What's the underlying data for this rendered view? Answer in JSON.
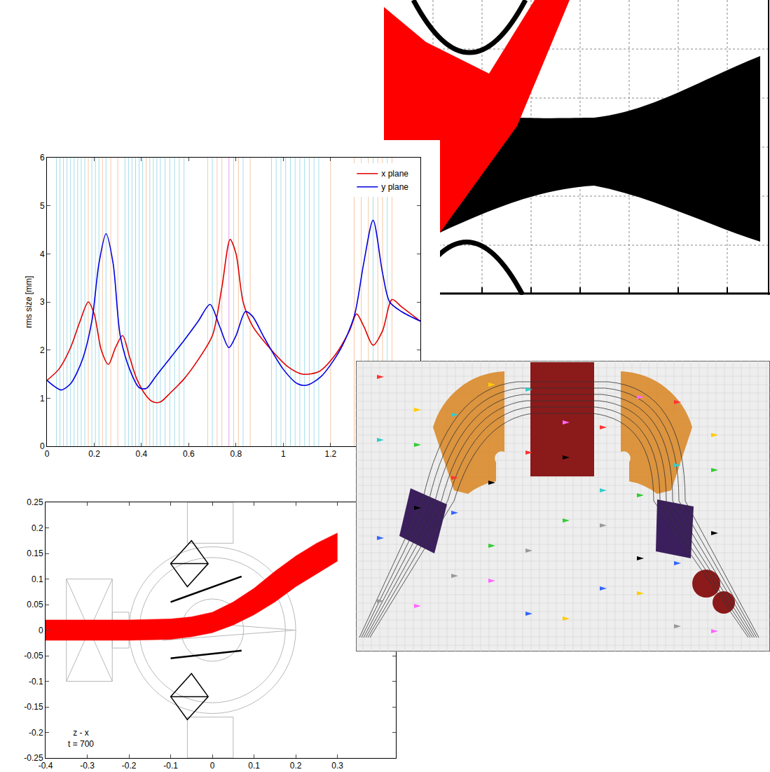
{
  "chart_data": [
    {
      "type": "line",
      "y_label": "rms size [mm]",
      "xlim": [
        0,
        1.58
      ],
      "xticks": [
        0,
        0.2,
        0.4,
        0.6,
        0.8,
        1,
        1.2
      ],
      "ylim": [
        0,
        6
      ],
      "yticks": [
        0,
        1,
        2,
        3,
        4,
        5,
        6
      ],
      "legend": "top-right",
      "element_positions": [
        0.04,
        0.055,
        0.07,
        0.085,
        0.1,
        0.115,
        0.13,
        0.145,
        0.16,
        0.175,
        0.19,
        0.205,
        0.22,
        0.235,
        0.25,
        0.27,
        0.3,
        0.33,
        0.345,
        0.36,
        0.375,
        0.39,
        0.405,
        0.42,
        0.435,
        0.45,
        0.465,
        0.48,
        0.5,
        0.52,
        0.54,
        0.56,
        0.58,
        0.68,
        0.7,
        0.72,
        0.74,
        0.77,
        0.79,
        0.81,
        0.83,
        0.86,
        0.95,
        0.97,
        0.99,
        1.01,
        1.03,
        1.05,
        1.07,
        1.09,
        1.11,
        1.13,
        1.15,
        1.2,
        1.3,
        1.33,
        1.36,
        1.38,
        1.4,
        1.42,
        1.44,
        1.46
      ],
      "element_colors": [
        "#a6dde8",
        "#a6dde8",
        "#a6dde8",
        "#a6dde8",
        "#a6dde8",
        "#a6dde8",
        "#a6dde8",
        "#a6dde8",
        "#a6dde8",
        "#f6c9a8",
        "#a6dde8",
        "#a6dde8",
        "#a6dde8",
        "#f6c9a8",
        "#a6dde8",
        "#f6c9a8",
        "#f6c9a8",
        "#a6dde8",
        "#a6dde8",
        "#a6dde8",
        "#a6dde8",
        "#a6dde8",
        "#a6dde8",
        "#f6c9a8",
        "#a6dde8",
        "#a6dde8",
        "#a6dde8",
        "#a6dde8",
        "#a6dde8",
        "#a6dde8",
        "#a6dde8",
        "#a6dde8",
        "#a6dde8",
        "#f6c9a8",
        "#a6dde8",
        "#f6c9a8",
        "#f6c9a8",
        "#e0a0e0",
        "#f6c9a8",
        "#f6c9a8",
        "#a6dde8",
        "#f6c9a8",
        "#a6dde8",
        "#a6dde8",
        "#a6dde8",
        "#a6dde8",
        "#a6dde8",
        "#a6dde8",
        "#a6dde8",
        "#a6dde8",
        "#a6dde8",
        "#a6dde8",
        "#a6dde8",
        "#f6c9a8",
        "#f6c9a8",
        "#f6c9a8",
        "#f6c9a8",
        "#a6dde8",
        "#f6c9a8",
        "#f6c9a8",
        "#a6dde8",
        "#f6c9a8"
      ],
      "series": [
        {
          "name": "x plane",
          "color": "#e00000",
          "x": [
            0,
            0.05,
            0.1,
            0.14,
            0.175,
            0.2,
            0.23,
            0.26,
            0.29,
            0.32,
            0.35,
            0.38,
            0.42,
            0.45,
            0.48,
            0.52,
            0.58,
            0.64,
            0.7,
            0.74,
            0.775,
            0.8,
            0.83,
            0.87,
            0.95,
            1.02,
            1.08,
            1.15,
            1.22,
            1.28,
            1.31,
            1.34,
            1.38,
            1.42,
            1.46,
            1.5,
            1.58
          ],
          "values": [
            1.37,
            1.6,
            2.05,
            2.6,
            3.0,
            2.75,
            2.0,
            1.7,
            2.05,
            2.3,
            1.85,
            1.4,
            1.05,
            0.92,
            0.92,
            1.1,
            1.4,
            1.8,
            2.3,
            3.3,
            4.3,
            4.0,
            3.0,
            2.5,
            2.0,
            1.65,
            1.5,
            1.55,
            1.9,
            2.4,
            2.75,
            2.5,
            2.1,
            2.4,
            3.05,
            2.9,
            2.6
          ]
        },
        {
          "name": "y plane",
          "color": "#0000e0",
          "x": [
            0,
            0.03,
            0.06,
            0.1,
            0.15,
            0.19,
            0.22,
            0.25,
            0.28,
            0.31,
            0.35,
            0.39,
            0.42,
            0.46,
            0.5,
            0.58,
            0.64,
            0.69,
            0.73,
            0.77,
            0.8,
            0.84,
            0.87,
            0.92,
            1.0,
            1.06,
            1.1,
            1.16,
            1.24,
            1.3,
            1.34,
            1.38,
            1.42,
            1.45,
            1.5,
            1.58
          ],
          "values": [
            1.37,
            1.25,
            1.17,
            1.3,
            1.8,
            2.6,
            3.8,
            4.42,
            3.8,
            2.3,
            1.6,
            1.22,
            1.2,
            1.45,
            1.7,
            2.2,
            2.6,
            2.95,
            2.5,
            2.05,
            2.3,
            2.8,
            2.7,
            2.25,
            1.6,
            1.3,
            1.27,
            1.45,
            2.0,
            2.7,
            3.8,
            4.7,
            3.6,
            3.0,
            2.8,
            2.6
          ]
        }
      ]
    },
    {
      "type": "area",
      "annotations": [
        "z - x",
        "t = 700"
      ],
      "xlim": [
        -0.4,
        0.44
      ],
      "xticks": [
        -0.4,
        -0.3,
        -0.2,
        -0.1,
        0,
        0.1,
        0.2,
        0.3
      ],
      "ylim": [
        -0.25,
        0.25
      ],
      "yticks": [
        -0.25,
        -0.2,
        -0.15,
        -0.1,
        -0.05,
        0,
        0.05,
        0.1,
        0.15,
        0.2,
        0.25
      ],
      "series": [
        {
          "color": "#ff0000",
          "x": [
            -0.4,
            -0.3,
            -0.2,
            -0.1,
            -0.05,
            0,
            0.05,
            0.1,
            0.15,
            0.2,
            0.25,
            0.3
          ],
          "upper": [
            0.02,
            0.02,
            0.02,
            0.022,
            0.026,
            0.035,
            0.055,
            0.082,
            0.115,
            0.145,
            0.17,
            0.19
          ],
          "lower": [
            -0.02,
            -0.02,
            -0.02,
            -0.018,
            -0.013,
            -0.005,
            0.01,
            0.03,
            0.055,
            0.085,
            0.11,
            0.135
          ]
        }
      ]
    }
  ]
}
